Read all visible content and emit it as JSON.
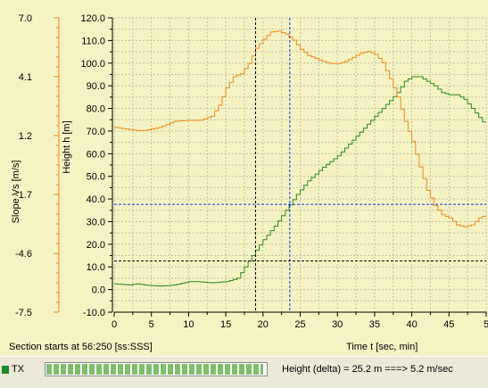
{
  "status_bar": {
    "tx_label": "TX",
    "tx_led_color": "#1b8a2a",
    "progress_fraction": 0.98,
    "delta_text": "Height (delta) = 25.2 m ===> 5.2 m/sec"
  },
  "plot": {
    "section_text": "Section starts at 56:250 [ss:SSS]",
    "cursor_x_values": [
      19,
      23.6
    ],
    "cursor_y_values": [
      12.6,
      37.6
    ]
  },
  "chart_data": {
    "type": "line",
    "xlabel": "Time  t  [sec, min]",
    "xlim": [
      0,
      50
    ],
    "x_ticks": [
      "0",
      "5",
      "10",
      "15",
      "20",
      "25",
      "30",
      "35",
      "40",
      "45",
      "5"
    ],
    "y_axes": [
      {
        "name": "slope",
        "label": "Slope  Vs  [m/s]",
        "lim": [
          -7.5,
          7.0
        ],
        "ticks": [
          "7.0",
          "4.1",
          "1.2",
          "-1.7",
          "-4.6",
          "-7.5"
        ]
      },
      {
        "name": "height",
        "label": "Height  h  [m]",
        "lim": [
          -10,
          120
        ],
        "ticks": [
          "120.0",
          "110.0",
          "100.0",
          "90.0",
          "80.0",
          "70.0",
          "60.0",
          "50.0",
          "40.0",
          "30.0",
          "20.0",
          "10.0",
          "0.0",
          "-10.0"
        ]
      }
    ],
    "series": [
      {
        "axis": "height",
        "color": "#2e8b22",
        "x": [
          0,
          2,
          3,
          4,
          6,
          8,
          10,
          11,
          13,
          15,
          16.5,
          17.5,
          18.5,
          20,
          21.5,
          23,
          24.5,
          26,
          28,
          30,
          32,
          34,
          36,
          38,
          39,
          40,
          41,
          42,
          43,
          44,
          45,
          46,
          47,
          48,
          49,
          50
        ],
        "y": [
          2.5,
          2,
          2.5,
          2,
          1.5,
          2,
          3.5,
          3.5,
          3,
          3.5,
          5,
          10,
          15,
          22,
          28,
          35,
          42,
          48,
          54,
          59,
          66,
          73,
          80,
          87,
          92,
          94,
          94,
          92,
          90,
          87,
          86,
          86,
          84,
          80,
          76,
          72
        ]
      },
      {
        "axis": "slope",
        "color": "#f08c1e",
        "x": [
          0,
          1,
          2,
          3,
          4,
          6,
          8,
          10,
          11.5,
          13,
          14,
          15,
          16,
          17,
          18,
          19,
          20,
          21,
          22,
          23,
          24,
          25,
          26,
          27,
          28,
          29,
          30,
          31,
          32,
          33,
          34,
          35,
          36,
          37,
          38,
          39,
          40,
          41,
          42,
          43,
          44,
          45,
          46,
          47,
          48,
          49,
          50
        ],
        "y": [
          1.6,
          1.55,
          1.5,
          1.45,
          1.45,
          1.6,
          1.9,
          1.95,
          1.95,
          2.15,
          2.7,
          3.55,
          4.1,
          4.25,
          4.75,
          5.5,
          5.95,
          6.3,
          6.35,
          6.2,
          5.9,
          5.45,
          5.15,
          5.0,
          4.85,
          4.75,
          4.75,
          4.85,
          5.05,
          5.25,
          5.35,
          5.2,
          4.8,
          4.0,
          3.1,
          1.9,
          0.9,
          -0.35,
          -1.5,
          -2.25,
          -2.7,
          -2.85,
          -3.2,
          -3.3,
          -3.2,
          -2.85,
          -2.7
        ]
      }
    ]
  }
}
